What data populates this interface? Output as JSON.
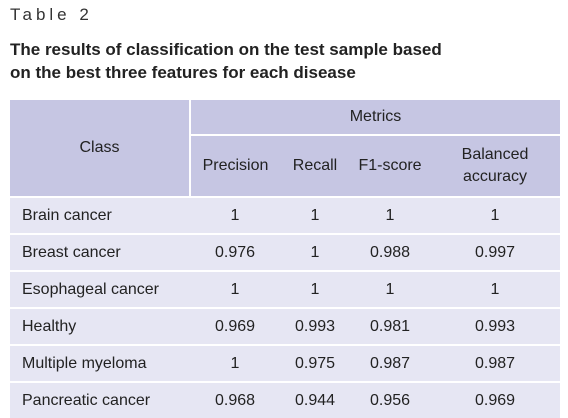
{
  "label": "Table 2",
  "title": [
    "The results of classification on the test sample based",
    "on the best three features for each disease"
  ],
  "table": {
    "group_header": "Metrics",
    "columns": [
      "Class",
      "Precision",
      "Recall",
      "F1-score",
      "Balanced accuracy"
    ],
    "rows": [
      [
        "Brain cancer",
        1,
        1,
        1,
        1
      ],
      [
        "Breast cancer",
        0.976,
        1,
        0.988,
        0.997
      ],
      [
        "Esophageal cancer",
        1,
        1,
        1,
        1
      ],
      [
        "Healthy",
        0.969,
        0.993,
        0.981,
        0.993
      ],
      [
        "Multiple myeloma",
        1,
        0.975,
        0.987,
        0.987
      ],
      [
        "Pancreatic cancer",
        0.968,
        0.944,
        0.956,
        0.969
      ]
    ]
  }
}
